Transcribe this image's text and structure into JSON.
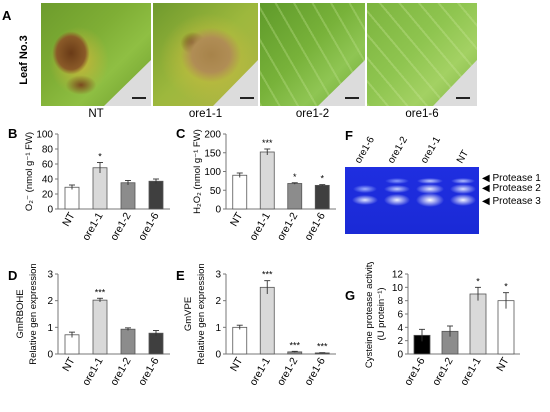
{
  "panels": {
    "A": {
      "letter": "A",
      "leaf_label": "Leaf No.3",
      "images": [
        {
          "label": "NT",
          "note": "necrotic-yellow"
        },
        {
          "label": "ore1-1",
          "note": "heavy-necrotic"
        },
        {
          "label": "ore1-2",
          "note": "green"
        },
        {
          "label": "ore1-6",
          "note": "green"
        }
      ]
    },
    "F": {
      "letter": "F",
      "lanes": [
        "ore1-6",
        "ore1-2",
        "ore1-1",
        "NT"
      ],
      "bands": [
        "Protease 1",
        "Protease 2",
        "Protease 3"
      ]
    }
  },
  "chart_data": [
    {
      "id": "B",
      "letter": "B",
      "type": "bar",
      "ylabel": "O₂⁻ (nmol g⁻¹ FW)",
      "categories": [
        "NT",
        "ore1-1",
        "ore1-2",
        "ore1-6"
      ],
      "values": [
        29,
        55,
        35,
        37
      ],
      "errors": [
        3,
        7,
        3,
        3
      ],
      "significance": [
        "",
        "*",
        "",
        ""
      ],
      "colors": [
        "#ffffff",
        "#d9d9d9",
        "#8c8c8c",
        "#3f3f3f"
      ],
      "ylim": [
        0,
        100
      ],
      "yticks": [
        "0",
        "20",
        "40",
        "60",
        "80",
        "100"
      ]
    },
    {
      "id": "C",
      "letter": "C",
      "type": "bar",
      "ylabel": "H₂O₂ (nmol g⁻¹ FW)",
      "categories": [
        "NT",
        "ore1-1",
        "ore1-2",
        "ore1-6"
      ],
      "values": [
        90,
        152,
        68,
        63
      ],
      "errors": [
        6,
        8,
        2,
        2
      ],
      "significance": [
        "",
        "***",
        "*",
        "*"
      ],
      "colors": [
        "#ffffff",
        "#d9d9d9",
        "#8c8c8c",
        "#3f3f3f"
      ],
      "ylim": [
        0,
        200
      ],
      "yticks": [
        "0",
        "50",
        "100",
        "150",
        "200"
      ]
    },
    {
      "id": "D",
      "letter": "D",
      "type": "bar",
      "ylabel": "Relative gen expression",
      "ylabel2": "GmRBOHE",
      "categories": [
        "NT",
        "ore1-1",
        "ore1-2",
        "ore1-6"
      ],
      "values": [
        0.72,
        2.02,
        0.93,
        0.78
      ],
      "errors": [
        0.1,
        0.07,
        0.05,
        0.1
      ],
      "significance": [
        "",
        "***",
        "",
        ""
      ],
      "colors": [
        "#ffffff",
        "#d9d9d9",
        "#8c8c8c",
        "#3f3f3f"
      ],
      "ylim": [
        0,
        3
      ],
      "yticks": [
        "0",
        "1",
        "2",
        "3"
      ]
    },
    {
      "id": "E",
      "letter": "E",
      "type": "bar",
      "ylabel": "Relative gen expression",
      "ylabel2": "GmVPE",
      "categories": [
        "NT",
        "ore1-1",
        "ore1-2",
        "ore1-6"
      ],
      "values": [
        1.0,
        2.5,
        0.08,
        0.04
      ],
      "errors": [
        0.08,
        0.25,
        0.02,
        0.01
      ],
      "significance": [
        "",
        "***",
        "***",
        "***"
      ],
      "colors": [
        "#ffffff",
        "#d9d9d9",
        "#8c8c8c",
        "#3f3f3f"
      ],
      "ylim": [
        0,
        3
      ],
      "yticks": [
        "0",
        "1",
        "2",
        "3"
      ]
    },
    {
      "id": "G",
      "letter": "G",
      "type": "bar",
      "ylabel": "Cysteine protease activity",
      "ylabel2": "(U protein⁻¹)",
      "categories": [
        "ore1-6",
        "ore1-2",
        "ore1-1",
        "NT"
      ],
      "values": [
        2.8,
        3.4,
        9.0,
        8.0
      ],
      "errors": [
        0.9,
        0.8,
        1.0,
        1.2
      ],
      "significance": [
        "",
        "",
        "*",
        "*"
      ],
      "colors": [
        "#000000",
        "#8c8c8c",
        "#d9d9d9",
        "#ffffff"
      ],
      "ylim": [
        0,
        12
      ],
      "yticks": [
        "0",
        "2",
        "4",
        "6",
        "8",
        "10",
        "12"
      ]
    }
  ]
}
